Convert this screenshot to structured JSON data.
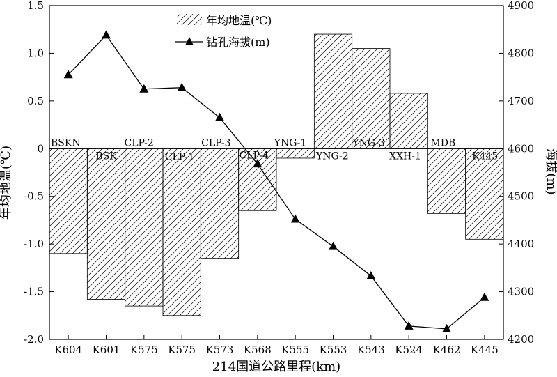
{
  "chart_data": {
    "type": "bar+line",
    "xlabel": "214国道公路里程(km)",
    "ylabel_left": "年均地温(℃)",
    "ylabel_right": "海拔(m)",
    "categories": [
      "K604",
      "K601",
      "K575",
      "K575",
      "K573",
      "K568",
      "K555",
      "K553",
      "K543",
      "K524",
      "K462",
      "K445"
    ],
    "station_labels": [
      "BSKN",
      "BSK",
      "CLP-2",
      "CLP-1",
      "CLP-3",
      "CLP-4",
      "YNG-1",
      "YNG-2",
      "YNG-3",
      "XXH-1",
      "MDB",
      "K445"
    ],
    "series": [
      {
        "name": "年均地温(℃)",
        "kind": "bar",
        "axis": "left",
        "pattern": "diagonal-hatch",
        "values": [
          -1.1,
          -1.58,
          -1.65,
          -1.75,
          -1.15,
          -0.65,
          -0.1,
          1.2,
          1.05,
          0.58,
          -0.68,
          -0.95
        ]
      },
      {
        "name": "钻孔海拔(m)",
        "kind": "line",
        "axis": "right",
        "marker": "triangle",
        "values": [
          4755,
          4838,
          4725,
          4728,
          4665,
          4568,
          4452,
          4395,
          4333,
          4228,
          4222,
          4288
        ]
      }
    ],
    "ylim_left": [
      -2.0,
      1.5
    ],
    "yticks_left": [
      "-2.0",
      "-1.5",
      "-1.0",
      "-0.5",
      "0",
      "0.5",
      "1.0",
      "1.5"
    ],
    "ylim_right": [
      4200,
      4900
    ],
    "yticks_right": [
      "4200",
      "4300",
      "4400",
      "4500",
      "4600",
      "4700",
      "4800",
      "4900"
    ],
    "legend_position": "top-center",
    "grid": false,
    "colors": {
      "ink": "#000000",
      "background": "#ffffff"
    }
  }
}
